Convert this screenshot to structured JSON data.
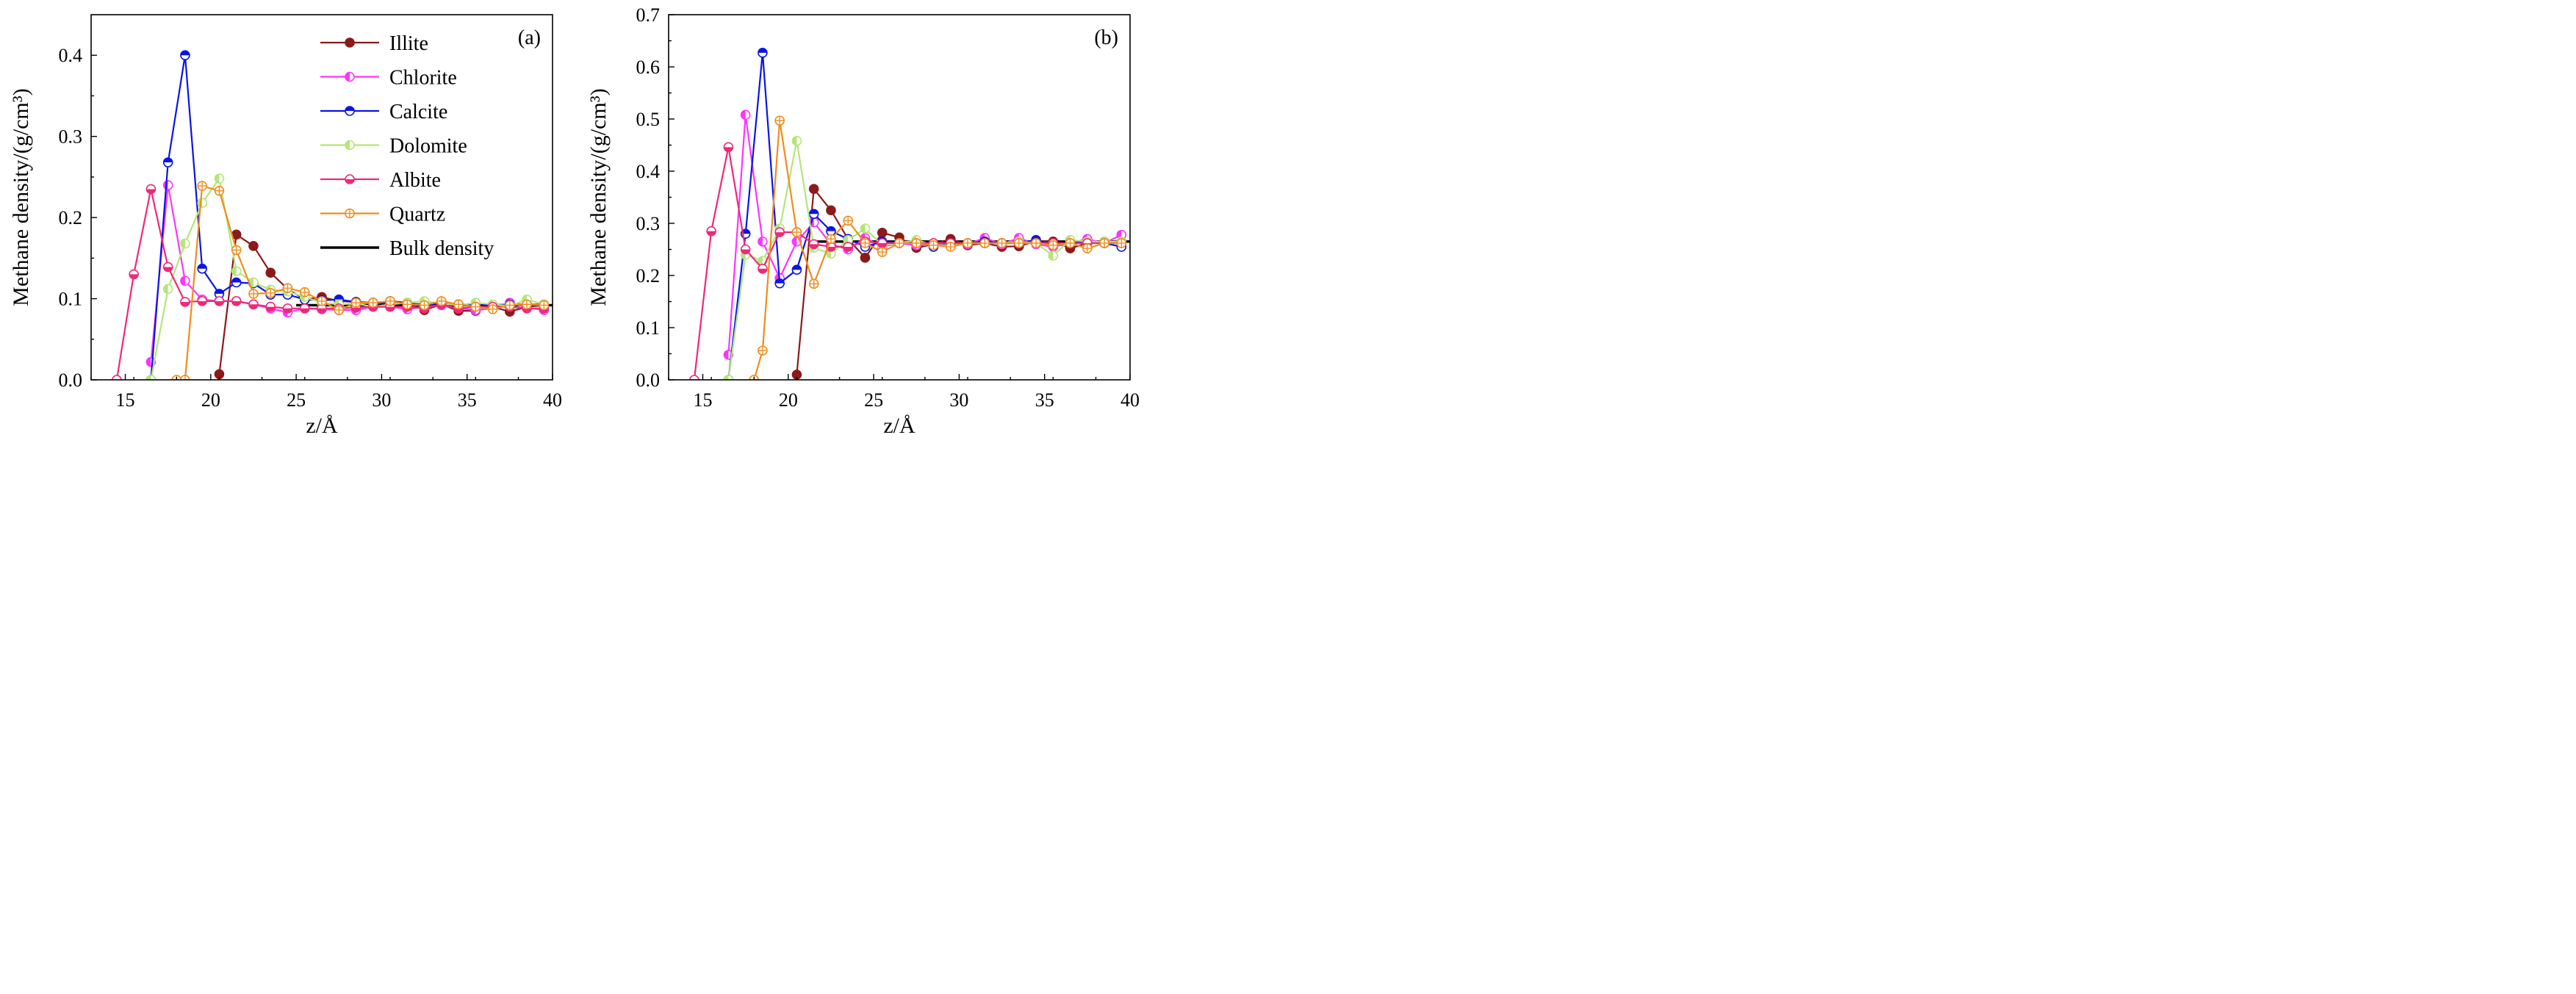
{
  "chart_data": [
    {
      "type": "line",
      "panel_label": "(a)",
      "xlabel": "z/Å",
      "ylabel": "Methane density/(g/cm³)",
      "xlim": [
        13,
        40
      ],
      "ylim": [
        0,
        0.45
      ],
      "xticks": [
        15,
        20,
        25,
        30,
        35,
        40
      ],
      "yticks": [
        0.0,
        0.1,
        0.2,
        0.3,
        0.4
      ],
      "ytick_labels": [
        "0.0",
        "0.1",
        "0.2",
        "0.3",
        "0.4"
      ],
      "grid": false,
      "legend": {
        "placement": "top-right",
        "entries": [
          "Illite",
          "Chlorite",
          "Calcite",
          "Dolomite",
          "Albite",
          "Quartz",
          "Bulk density"
        ]
      },
      "bulk_density": {
        "name": "Bulk density",
        "value": 0.092,
        "x_range": [
          25,
          40
        ],
        "color": "#000000"
      },
      "series": [
        {
          "name": "Illite",
          "color": "#8b1a1a",
          "marker": "filled",
          "x": [
            20.5,
            21.5,
            22.5,
            23.5,
            24.5,
            25.5,
            26.5,
            27.5,
            28.5,
            29.5,
            30.5,
            31.5,
            32.5,
            33.5,
            34.5,
            35.5,
            36.5,
            37.5,
            38.5,
            39.5
          ],
          "y": [
            0.007,
            0.179,
            0.165,
            0.132,
            0.112,
            0.099,
            0.102,
            0.097,
            0.096,
            0.094,
            0.097,
            0.095,
            0.086,
            0.093,
            0.085,
            0.085,
            0.09,
            0.084,
            0.09,
            0.092
          ]
        },
        {
          "name": "Chlorite",
          "color": "#ff33ff",
          "marker": "half-left",
          "x": [
            16.5,
            17.5,
            18.5,
            19.5,
            20.5,
            21.5,
            22.5,
            23.5,
            24.5,
            25.5,
            26.5,
            27.5,
            28.5,
            29.5,
            30.5,
            31.5,
            32.5,
            33.5,
            34.5,
            35.5,
            36.5,
            37.5,
            38.5,
            39.5
          ],
          "y": [
            0.022,
            0.24,
            0.122,
            0.099,
            0.097,
            0.097,
            0.093,
            0.088,
            0.083,
            0.088,
            0.087,
            0.086,
            0.086,
            0.09,
            0.09,
            0.087,
            0.09,
            0.092,
            0.088,
            0.086,
            0.088,
            0.095,
            0.089,
            0.086
          ]
        },
        {
          "name": "Calcite",
          "color": "#0a14e6",
          "marker": "half-top",
          "x": [
            16.5,
            17.5,
            18.5,
            19.5,
            20.5,
            21.5,
            22.5,
            23.5,
            24.5,
            25.5,
            26.5,
            27.5,
            28.5,
            29.5,
            30.5,
            31.5,
            32.5,
            33.5,
            34.5,
            35.5,
            36.5,
            37.5,
            38.5,
            39.5
          ],
          "y": [
            0.0,
            0.268,
            0.4,
            0.137,
            0.106,
            0.12,
            0.119,
            0.105,
            0.105,
            0.099,
            0.098,
            0.099,
            0.096,
            0.095,
            0.094,
            0.094,
            0.093,
            0.094,
            0.093,
            0.093,
            0.092,
            0.093,
            0.093,
            0.093
          ]
        },
        {
          "name": "Dolomite",
          "color": "#b4e67a",
          "marker": "half-left",
          "x": [
            16.5,
            17.5,
            18.5,
            19.5,
            20.5,
            21.5,
            22.5,
            23.5,
            24.5,
            25.5,
            26.5,
            27.5,
            28.5,
            29.5,
            30.5,
            31.5,
            32.5,
            33.5,
            34.5,
            35.5,
            36.5,
            37.5,
            38.5,
            39.5
          ],
          "y": [
            0.0,
            0.112,
            0.168,
            0.218,
            0.248,
            0.134,
            0.12,
            0.111,
            0.109,
            0.102,
            0.095,
            0.093,
            0.094,
            0.09,
            0.093,
            0.095,
            0.097,
            0.094,
            0.092,
            0.095,
            0.093,
            0.091,
            0.099,
            0.093
          ]
        },
        {
          "name": "Albite",
          "color": "#f0287a",
          "marker": "half-bottom",
          "x": [
            14.5,
            15.5,
            16.5,
            17.5,
            18.5,
            19.5,
            20.5,
            21.5,
            22.5,
            23.5,
            24.5,
            25.5,
            26.5,
            27.5,
            28.5,
            29.5,
            30.5,
            31.5,
            32.5,
            33.5,
            34.5,
            35.5,
            36.5,
            37.5,
            38.5,
            39.5
          ],
          "y": [
            0.0,
            0.13,
            0.235,
            0.139,
            0.096,
            0.097,
            0.097,
            0.097,
            0.093,
            0.09,
            0.088,
            0.088,
            0.088,
            0.088,
            0.089,
            0.09,
            0.09,
            0.09,
            0.088,
            0.093,
            0.088,
            0.09,
            0.09,
            0.09,
            0.088,
            0.088
          ]
        },
        {
          "name": "Quartz",
          "color": "#f08c1e",
          "marker": "crossed",
          "x": [
            18,
            18.5,
            19.5,
            20.5,
            21.5,
            22.5,
            23.5,
            24.5,
            25.5,
            26.5,
            27.5,
            28.5,
            29.5,
            30.5,
            31.5,
            32.5,
            33.5,
            34.5,
            35.5,
            36.5,
            37.5,
            38.5,
            39.5
          ],
          "y": [
            0.0,
            0.0,
            0.239,
            0.233,
            0.16,
            0.106,
            0.107,
            0.113,
            0.108,
            0.097,
            0.086,
            0.095,
            0.095,
            0.097,
            0.093,
            0.092,
            0.097,
            0.093,
            0.09,
            0.087,
            0.092,
            0.093,
            0.092
          ]
        }
      ]
    },
    {
      "type": "line",
      "panel_label": "(b)",
      "xlabel": "z/Å",
      "ylabel": "Methane density/(g/cm³)",
      "xlim": [
        13,
        40
      ],
      "ylim": [
        0,
        0.7
      ],
      "xticks": [
        15,
        20,
        25,
        30,
        35,
        40
      ],
      "yticks": [
        0.0,
        0.1,
        0.2,
        0.3,
        0.4,
        0.5,
        0.6,
        0.7
      ],
      "ytick_labels": [
        "0.0",
        "0.1",
        "0.2",
        "0.3",
        "0.4",
        "0.5",
        "0.6",
        "0.7"
      ],
      "grid": false,
      "bulk_density": {
        "name": "Bulk density",
        "value": 0.265,
        "x_range": [
          21.5,
          40
        ],
        "color": "#000000"
      },
      "series": [
        {
          "name": "Illite",
          "color": "#8b1a1a",
          "marker": "filled",
          "x": [
            20.5,
            21.5,
            22.5,
            23.5,
            24.5,
            25.5,
            26.5,
            27.5,
            28.5,
            29.5,
            30.5,
            31.5,
            32.5,
            33.5,
            34.5,
            35.5,
            36.5,
            37.5,
            38.5,
            39.5
          ],
          "y": [
            0.01,
            0.366,
            0.325,
            0.27,
            0.234,
            0.282,
            0.273,
            0.253,
            0.26,
            0.27,
            0.258,
            0.262,
            0.255,
            0.256,
            0.266,
            0.265,
            0.252,
            0.262,
            0.265,
            0.265
          ]
        },
        {
          "name": "Chlorite",
          "color": "#ff33ff",
          "marker": "half-left",
          "x": [
            16.5,
            17.5,
            18.5,
            19.5,
            20.5,
            21.5,
            22.5,
            23.5,
            24.5,
            25.5,
            26.5,
            27.5,
            28.5,
            29.5,
            30.5,
            31.5,
            32.5,
            33.5,
            34.5,
            35.5,
            36.5,
            37.5,
            38.5,
            39.5
          ],
          "y": [
            0.048,
            0.508,
            0.265,
            0.195,
            0.265,
            0.302,
            0.26,
            0.25,
            0.272,
            0.255,
            0.262,
            0.258,
            0.258,
            0.262,
            0.26,
            0.272,
            0.26,
            0.272,
            0.26,
            0.255,
            0.262,
            0.27,
            0.262,
            0.278
          ]
        },
        {
          "name": "Calcite",
          "color": "#0a14e6",
          "marker": "half-top",
          "x": [
            16.5,
            17.5,
            18.5,
            19.5,
            20.5,
            21.5,
            22.5,
            23.5,
            24.5,
            25.5,
            26.5,
            27.5,
            28.5,
            29.5,
            30.5,
            31.5,
            32.5,
            33.5,
            34.5,
            35.5,
            36.5,
            37.5,
            38.5,
            39.5
          ],
          "y": [
            0.0,
            0.28,
            0.627,
            0.185,
            0.211,
            0.318,
            0.285,
            0.27,
            0.255,
            0.265,
            0.262,
            0.265,
            0.255,
            0.262,
            0.262,
            0.265,
            0.262,
            0.262,
            0.268,
            0.258,
            0.262,
            0.265,
            0.262,
            0.255
          ]
        },
        {
          "name": "Dolomite",
          "color": "#b4e67a",
          "marker": "half-left",
          "x": [
            16.5,
            17.5,
            18.5,
            19.5,
            20.5,
            21.5,
            22.5,
            23.5,
            24.5,
            25.5,
            26.5,
            27.5,
            28.5,
            29.5,
            30.5,
            31.5,
            32.5,
            33.5,
            34.5,
            35.5,
            36.5,
            37.5,
            38.5,
            39.5
          ],
          "y": [
            0.0,
            0.24,
            0.228,
            0.29,
            0.458,
            0.253,
            0.242,
            0.268,
            0.29,
            0.258,
            0.262,
            0.268,
            0.258,
            0.258,
            0.262,
            0.262,
            0.262,
            0.265,
            0.262,
            0.238,
            0.268,
            0.265,
            0.265,
            0.265
          ]
        },
        {
          "name": "Albite",
          "color": "#f0287a",
          "marker": "half-bottom",
          "x": [
            14.5,
            15.5,
            16.5,
            17.5,
            18.5,
            19.5,
            20.5,
            21.5,
            22.5,
            23.5,
            24.5,
            25.5,
            26.5,
            27.5,
            28.5,
            29.5,
            30.5,
            31.5,
            32.5,
            33.5,
            34.5,
            35.5,
            36.5,
            37.5,
            38.5,
            39.5
          ],
          "y": [
            0.0,
            0.285,
            0.446,
            0.25,
            0.213,
            0.283,
            0.283,
            0.26,
            0.255,
            0.255,
            0.265,
            0.262,
            0.262,
            0.262,
            0.262,
            0.262,
            0.262,
            0.262,
            0.262,
            0.262,
            0.262,
            0.262,
            0.262,
            0.262,
            0.262,
            0.262
          ]
        },
        {
          "name": "Quartz",
          "color": "#f08c1e",
          "marker": "crossed",
          "x": [
            18,
            18.5,
            19.5,
            20.5,
            21.5,
            22.5,
            23.5,
            24.5,
            25.5,
            26.5,
            27.5,
            28.5,
            29.5,
            30.5,
            31.5,
            32.5,
            33.5,
            34.5,
            35.5,
            36.5,
            37.5,
            38.5,
            39.5
          ],
          "y": [
            0.0,
            0.056,
            0.497,
            0.283,
            0.184,
            0.27,
            0.305,
            0.262,
            0.245,
            0.262,
            0.262,
            0.258,
            0.255,
            0.262,
            0.262,
            0.262,
            0.262,
            0.262,
            0.258,
            0.262,
            0.252,
            0.262,
            0.262
          ]
        }
      ]
    }
  ]
}
